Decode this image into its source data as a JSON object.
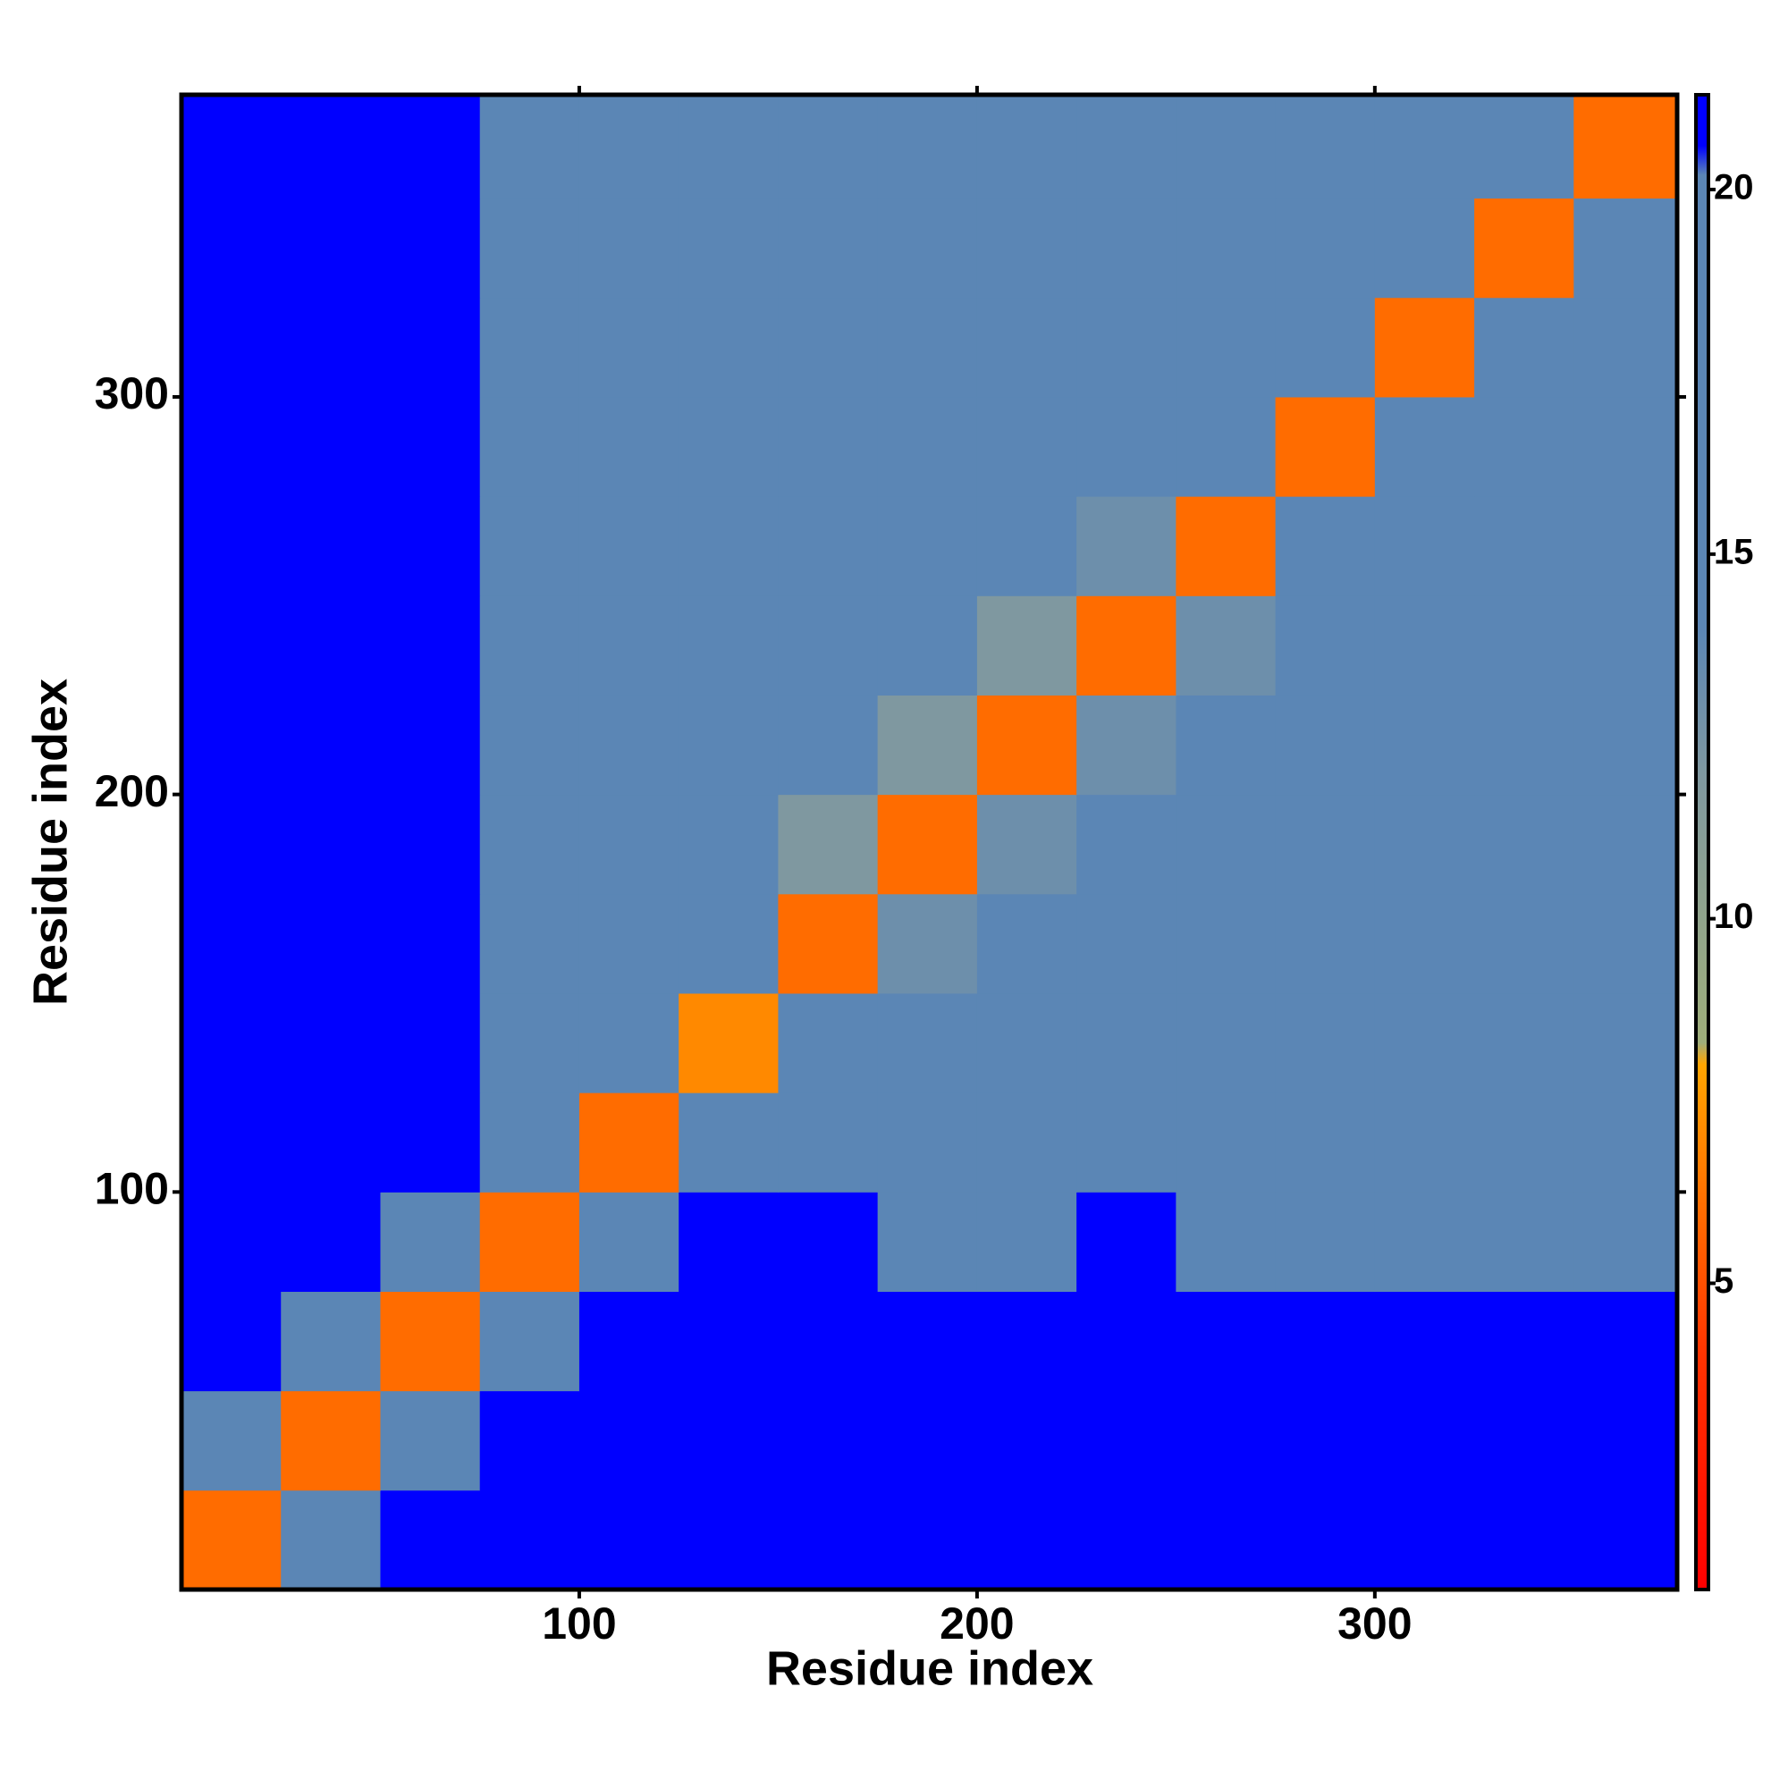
{
  "chart_data": {
    "type": "heatmap",
    "xlabel": "Residue index",
    "ylabel": "Residue index",
    "x_bins": [
      0,
      25,
      50,
      75,
      100,
      125,
      150,
      175,
      200,
      225,
      250,
      275,
      300,
      325,
      350,
      376
    ],
    "y_bins": [
      0,
      25,
      50,
      75,
      100,
      125,
      150,
      175,
      200,
      225,
      250,
      275,
      300,
      325,
      350,
      376
    ],
    "xlim": [
      0,
      376
    ],
    "ylim": [
      0,
      376
    ],
    "xticks": [
      100,
      200,
      300
    ],
    "yticks": [
      100,
      200,
      300
    ],
    "clim": [
      0.8,
      21.3
    ],
    "cticks": [
      5,
      10,
      15,
      20
    ],
    "colorscale": [
      [
        0.8,
        "#ff0000"
      ],
      [
        4,
        "#ff3300"
      ],
      [
        8,
        "#ffa500"
      ],
      [
        8.3,
        "#9fae7a"
      ],
      [
        12,
        "#7f98a0"
      ],
      [
        14,
        "#5b86b5"
      ],
      [
        20.2,
        "#5b86b5"
      ],
      [
        20.6,
        "#0000ff"
      ]
    ],
    "values": [
      [
        6,
        20,
        21,
        21,
        21,
        21,
        21,
        21,
        21,
        21,
        21,
        21,
        21,
        21,
        21
      ],
      [
        20,
        6,
        20,
        21,
        21,
        21,
        21,
        21,
        21,
        21,
        21,
        21,
        21,
        21,
        21
      ],
      [
        21,
        20,
        6,
        20,
        21,
        21,
        21,
        21,
        21,
        21,
        21,
        21,
        21,
        21,
        21
      ],
      [
        21,
        21,
        19,
        6,
        17,
        21,
        21,
        20,
        20,
        21,
        20,
        19,
        19,
        20,
        20
      ],
      [
        21,
        21,
        21,
        17,
        6,
        16,
        19,
        19,
        18,
        18,
        18,
        17,
        16,
        18,
        18
      ],
      [
        21,
        21,
        21,
        20,
        16,
        7,
        15,
        17,
        17,
        16,
        17,
        17,
        15,
        17,
        17
      ],
      [
        21,
        21,
        21,
        20,
        18,
        14,
        6,
        13,
        15,
        16,
        17,
        16,
        14,
        15,
        16
      ],
      [
        21,
        21,
        21,
        19,
        17,
        16,
        12,
        6,
        13,
        15,
        16,
        17,
        16,
        17,
        17
      ],
      [
        21,
        21,
        21,
        20,
        18,
        17,
        15,
        12,
        6,
        13,
        15,
        18,
        17,
        19,
        18
      ],
      [
        21,
        21,
        21,
        20,
        18,
        17,
        17,
        14,
        12,
        6,
        13,
        17,
        18,
        17,
        19
      ],
      [
        21,
        21,
        21,
        20,
        17,
        16,
        17,
        18,
        15,
        13,
        6,
        15,
        19,
        19,
        19
      ],
      [
        21,
        21,
        21,
        20,
        17,
        17,
        18,
        18,
        17,
        15,
        14,
        6,
        16,
        17,
        17
      ],
      [
        21,
        21,
        21,
        18,
        17,
        16,
        14,
        16,
        18,
        17,
        16,
        15,
        6,
        16,
        17
      ],
      [
        21,
        21,
        21,
        20,
        18,
        17,
        15,
        18,
        19,
        19,
        18,
        17,
        14,
        6,
        16
      ],
      [
        21,
        21,
        21,
        20,
        17,
        18,
        16,
        17,
        18,
        18,
        17,
        16,
        16,
        14,
        6
      ]
    ]
  }
}
